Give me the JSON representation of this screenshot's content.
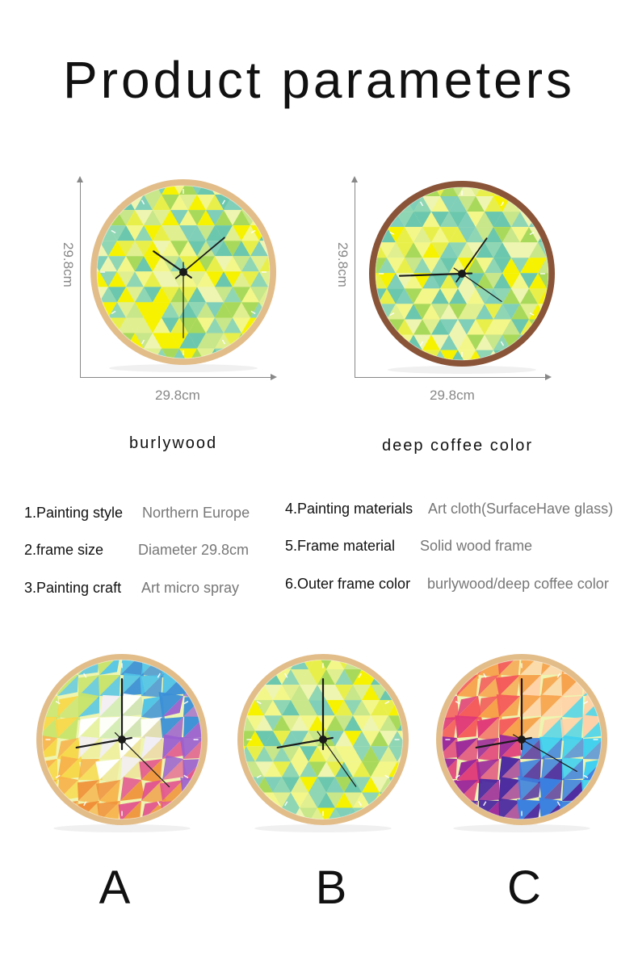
{
  "title": "Product parameters",
  "dimensions": {
    "height": "29.8cm",
    "width": "29.8cm"
  },
  "color_options": [
    {
      "label": "burlywood",
      "frame_color": "#e2bd8a"
    },
    {
      "label": "deep coffee color",
      "frame_color": "#8a5438"
    }
  ],
  "parameters": [
    {
      "key": "1.Painting style",
      "value": "Northern Europe"
    },
    {
      "key": "2.frame size",
      "value": "Diameter 29.8cm"
    },
    {
      "key": "3.Painting craft",
      "value": "Art micro spray"
    },
    {
      "key": "4.Painting materials",
      "value": "Art cloth(SurfaceHave glass)"
    },
    {
      "key": "5.Frame material",
      "value": "Solid wood frame"
    },
    {
      "key": "6.Outer frame color",
      "value": "burlywood/deep coffee color"
    }
  ],
  "variants": [
    {
      "label": "A",
      "pattern": "rainbow-polygon"
    },
    {
      "label": "B",
      "pattern": "green-yellow-triangles"
    },
    {
      "label": "C",
      "pattern": "purple-pink-polygon"
    }
  ]
}
